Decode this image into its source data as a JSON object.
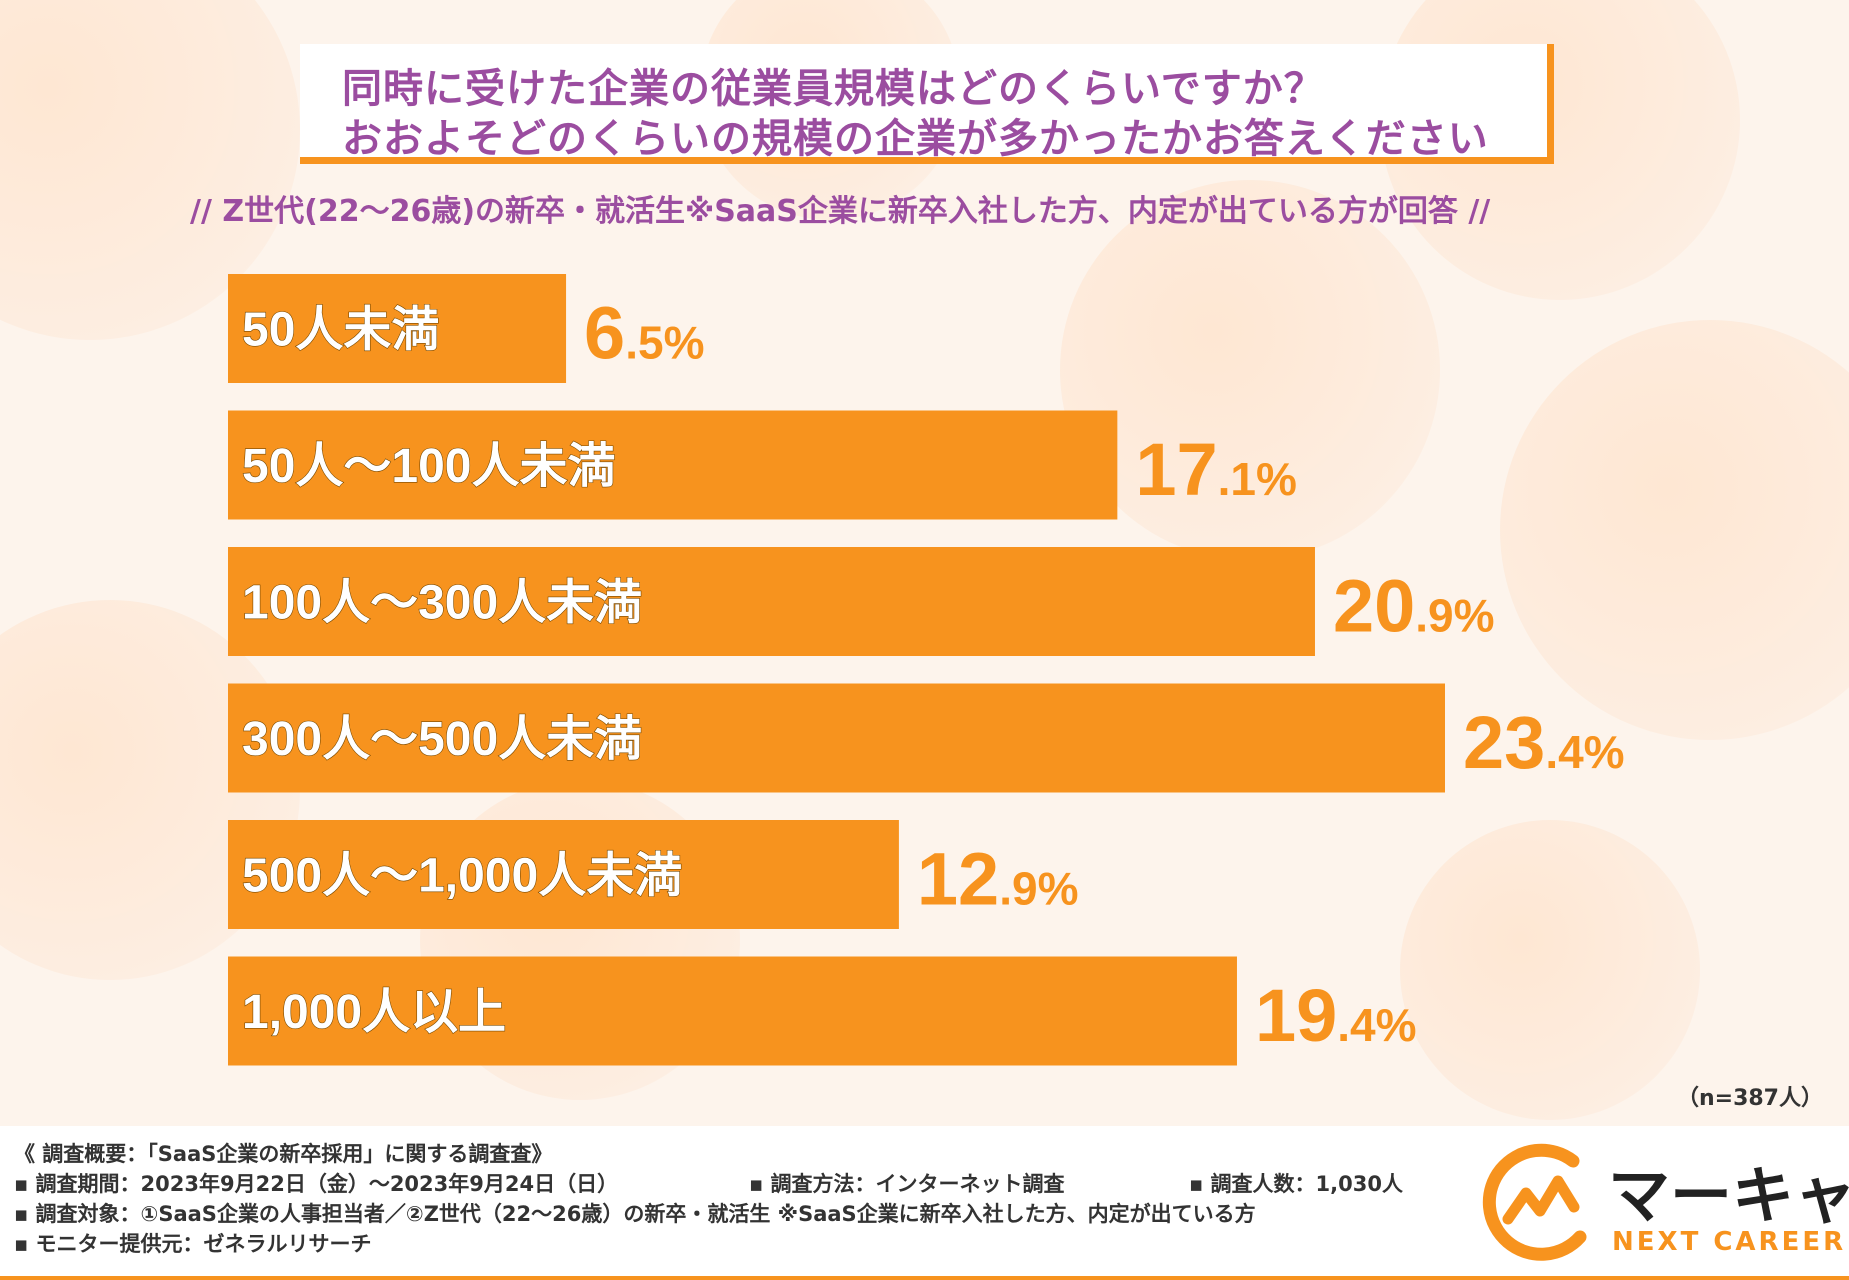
{
  "title": {
    "line1": "同時に受けた企業の従業員規模はどのくらいですか？",
    "line2": "おおよそどのくらいの規模の企業が多かったかお答えください"
  },
  "subtitle": "// Z世代(22〜26歳)の新卒・就活生※SaaS企業に新卒入社した方、内定が出ている方が回答 //",
  "chart_data": {
    "type": "bar",
    "orientation": "horizontal",
    "categories": [
      "50人未満",
      "50人〜100人未満",
      "100人〜300人未満",
      "300人〜500人未満",
      "500人〜1,000人未満",
      "1,000人以上"
    ],
    "values": [
      6.5,
      17.1,
      20.9,
      23.4,
      12.9,
      19.4
    ],
    "value_labels": [
      "6.5%",
      "17.1%",
      "20.9%",
      "23.4%",
      "12.9%",
      "19.4%"
    ],
    "unit": "%",
    "xlim": [
      0,
      23.4
    ],
    "bar_color": "#f7931e"
  },
  "sample": "（n=387人）",
  "footer": {
    "overview": "《 調査概要：「SaaS企業の新卒採用」に関する調査査》",
    "period": "▪ 調査期間：2023年9月22日（金）〜2023年9月24日（日）",
    "method": "▪ 調査方法：インターネット調査",
    "count": "▪ 調査人数：1,030人",
    "target": "▪ 調査対象：①SaaS企業の人事担当者／②Z世代（22〜26歳）の新卒・就活生 ※SaaS企業に新卒入社した方、内定が出ている方",
    "monitor": "▪ モニター提供元：ゼネラルリサーチ"
  },
  "logo": {
    "name": "マーキャリ",
    "sub": "NEXT CAREER"
  },
  "colors": {
    "accent": "#f7931e",
    "title": "#9b4da0"
  }
}
